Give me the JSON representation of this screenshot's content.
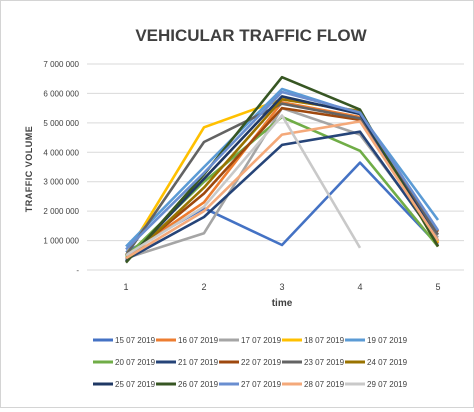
{
  "chart_data": {
    "type": "line",
    "title": "VEHICULAR TRAFFIC FLOW",
    "xlabel": "time",
    "ylabel": "TRAFFIC VOLUME",
    "x": [
      1,
      2,
      3,
      4,
      5
    ],
    "x_tick_labels": [
      "1",
      "2",
      "3",
      "4",
      "5"
    ],
    "ylim": [
      0,
      7000000
    ],
    "y_ticks": [
      0,
      1000000,
      2000000,
      3000000,
      4000000,
      5000000,
      6000000,
      7000000
    ],
    "y_tick_labels": [
      "-",
      "1 000 000",
      "2 000 000",
      "3 000 000",
      "4 000 000",
      "5 000 000",
      "6 000 000",
      "7 000 000"
    ],
    "grid": true,
    "legend_position": "bottom",
    "series": [
      {
        "name": "15 07 2019",
        "color": "#4472C4",
        "values": [
          600000,
          2100000,
          850000,
          3650000,
          850000
        ]
      },
      {
        "name": "16 07 2019",
        "color": "#ED7D31",
        "values": [
          500000,
          2300000,
          5700000,
          5200000,
          900000
        ]
      },
      {
        "name": "17 07 2019",
        "color": "#A5A5A5",
        "values": [
          400000,
          1250000,
          5500000,
          4600000,
          1100000
        ]
      },
      {
        "name": "18 07 2019",
        "color": "#FFC000",
        "values": [
          500000,
          4850000,
          5800000,
          5400000,
          950000
        ]
      },
      {
        "name": "19 07 2019",
        "color": "#5B9BD5",
        "values": [
          800000,
          3500000,
          6150000,
          5300000,
          1700000
        ]
      },
      {
        "name": "20 07 2019",
        "color": "#70AD47",
        "values": [
          450000,
          3000000,
          5200000,
          4050000,
          800000
        ]
      },
      {
        "name": "21 07 2019",
        "color": "#264478",
        "values": [
          350000,
          1800000,
          4250000,
          4700000,
          1000000
        ]
      },
      {
        "name": "22 07 2019",
        "color": "#9E480E",
        "values": [
          400000,
          2600000,
          5500000,
          5100000,
          1300000
        ]
      },
      {
        "name": "23 07 2019",
        "color": "#636363",
        "values": [
          500000,
          4350000,
          5650000,
          5150000,
          1200000
        ]
      },
      {
        "name": "24 07 2019",
        "color": "#997300",
        "values": [
          300000,
          2800000,
          5800000,
          5400000,
          800000
        ]
      },
      {
        "name": "25 07 2019",
        "color": "#1F3864",
        "values": [
          300000,
          3100000,
          5900000,
          5300000,
          1000000
        ]
      },
      {
        "name": "26 07 2019",
        "color": "#375623",
        "values": [
          250000,
          3250000,
          6550000,
          5450000,
          800000
        ]
      },
      {
        "name": "27 07 2019",
        "color": "#698ED0",
        "values": [
          700000,
          3300000,
          6050000,
          5350000,
          1350000
        ]
      },
      {
        "name": "28 07 2019",
        "color": "#F4A97A",
        "values": [
          400000,
          2000000,
          4600000,
          5050000,
          1000000
        ]
      },
      {
        "name": "29 07 2019",
        "color": "#C9C9C9",
        "values": [
          500000,
          2150000,
          5250000,
          750000,
          null
        ]
      }
    ]
  }
}
